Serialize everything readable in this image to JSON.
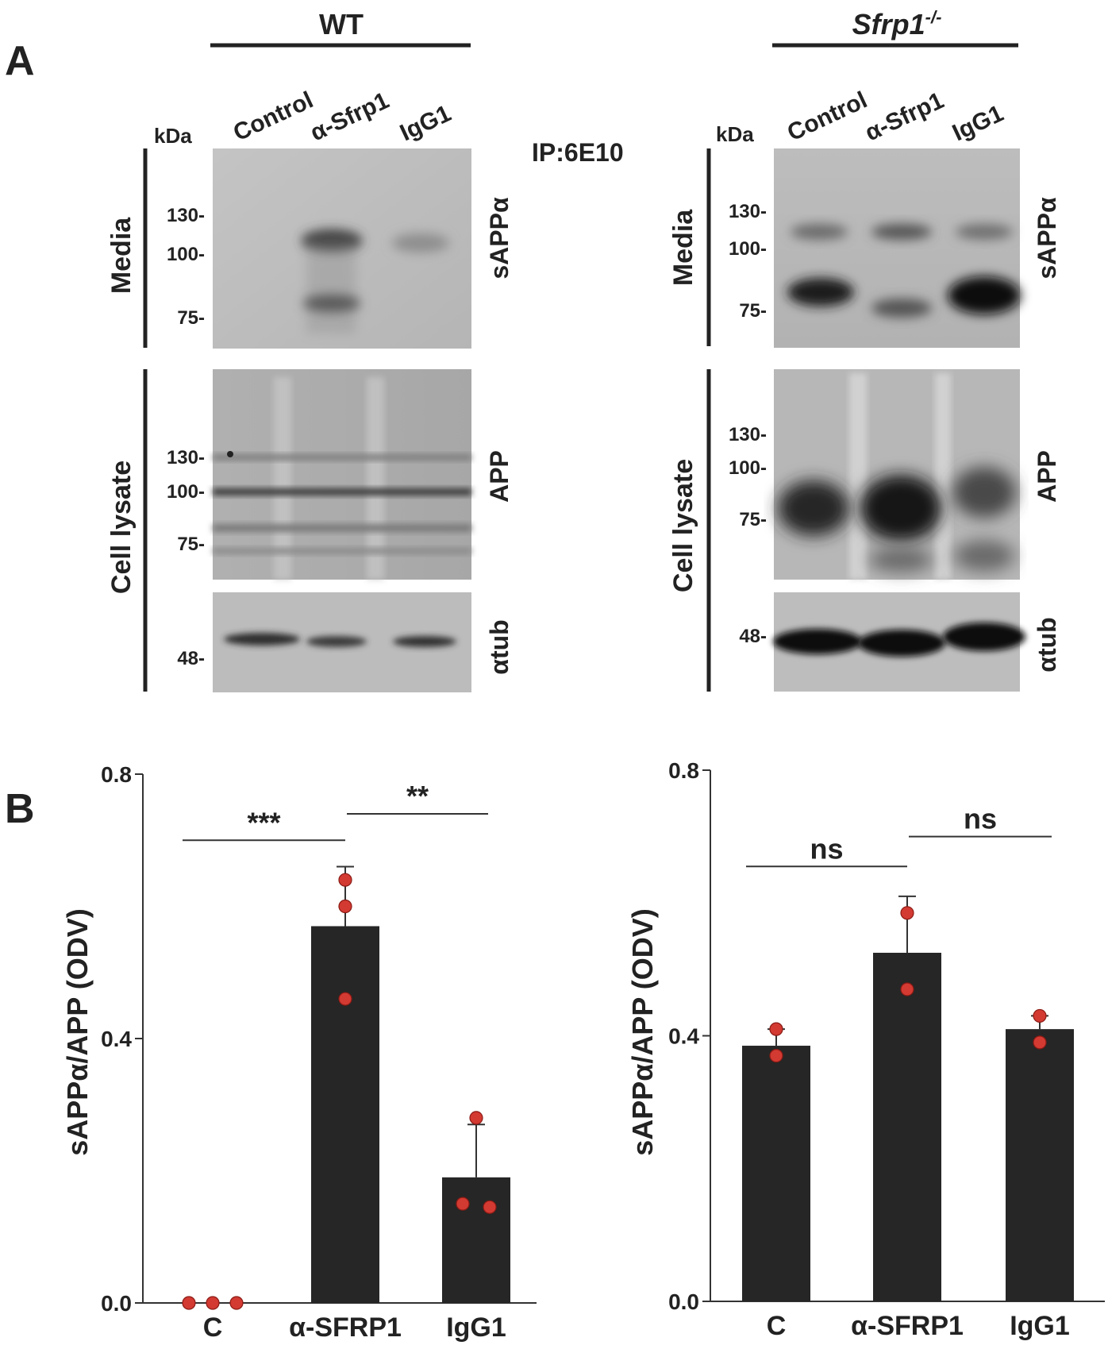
{
  "panel_a": {
    "letter": "A",
    "ip_label": "IP:6E10",
    "groups": [
      {
        "id": "wt",
        "header": "WT",
        "kda_label": "kDa",
        "lanes": [
          "Control",
          "α-Sfrp1",
          "IgG1"
        ],
        "row_labels": {
          "media": "Media",
          "lysate": "Cell lysate"
        },
        "blots": [
          {
            "id": "media",
            "protein": "sAPPα",
            "markers": [
              "130-",
              "100-",
              "75-"
            ]
          },
          {
            "id": "app",
            "protein": "APP",
            "markers": [
              "130-",
              "100-",
              "75-"
            ]
          },
          {
            "id": "tub",
            "protein": "αtub",
            "markers": [
              "48-"
            ]
          }
        ]
      },
      {
        "id": "sfrp1ko",
        "header": "Sfrp1",
        "header_superscript": "-/-",
        "kda_label": "kDa",
        "lanes": [
          "Control",
          "α-Sfrp1",
          "IgG1"
        ],
        "row_labels": {
          "media": "Media",
          "lysate": "Cell lysate"
        },
        "blots": [
          {
            "id": "media",
            "protein": "sAPPα",
            "markers": [
              "130-",
              "100-",
              "75-"
            ]
          },
          {
            "id": "app",
            "protein": "APP",
            "markers": [
              "130-",
              "100-",
              "75-"
            ]
          },
          {
            "id": "tub",
            "protein": "αtub",
            "markers": [
              "48-"
            ]
          }
        ]
      }
    ]
  },
  "panel_b": {
    "letter": "B"
  },
  "chart_data": [
    {
      "type": "bar",
      "panel": "B-left",
      "categories": [
        "C",
        "α-SFRP1",
        "IgG1"
      ],
      "values": [
        0.0,
        0.57,
        0.19
      ],
      "errors": [
        0.0,
        0.09,
        0.08
      ],
      "points": [
        [
          0.0,
          0.0,
          0.0
        ],
        [
          0.64,
          0.6,
          0.46
        ],
        [
          0.28,
          0.15,
          0.145
        ]
      ],
      "ylabel": "sAPPα/APP (ODV)",
      "ylim": [
        0,
        0.8
      ],
      "yticks": [
        "0.0",
        "0.4",
        "0.8"
      ],
      "comparisons": [
        {
          "from": 0,
          "to": 1,
          "label": "***",
          "height": 0.7
        },
        {
          "from": 1,
          "to": 2,
          "label": "**",
          "height": 0.74
        }
      ],
      "bar_color": "#262626",
      "point_color": "#d33a32"
    },
    {
      "type": "bar",
      "panel": "B-right",
      "categories": [
        "C",
        "α-SFRP1",
        "IgG1"
      ],
      "values": [
        0.385,
        0.525,
        0.41
      ],
      "errors": [
        0.025,
        0.085,
        0.02
      ],
      "points": [
        [
          0.41,
          0.37
        ],
        [
          0.585,
          0.47
        ],
        [
          0.43,
          0.39
        ]
      ],
      "ylabel": "sAPPα/APP (ODV)",
      "ylim": [
        0,
        0.8
      ],
      "yticks": [
        "0.0",
        "0.4",
        "0.8"
      ],
      "comparisons": [
        {
          "from": 0,
          "to": 1,
          "label": "ns",
          "height": 0.655
        },
        {
          "from": 1,
          "to": 2,
          "label": "ns",
          "height": 0.7
        }
      ],
      "bar_color": "#262626",
      "point_color": "#d33a32"
    }
  ]
}
